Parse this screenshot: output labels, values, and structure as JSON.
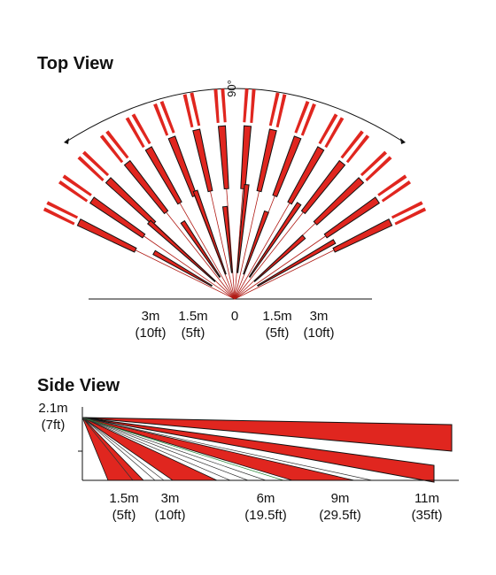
{
  "top_view": {
    "title": "Top View",
    "angle_label": "90°",
    "labels": [
      {
        "main": "3m",
        "sub": "(10ft)"
      },
      {
        "main": "1.5m",
        "sub": "(5ft)"
      },
      {
        "main": "0"
      },
      {
        "main": "1.5m",
        "sub": "(5ft)"
      },
      {
        "main": "3m",
        "sub": "(10ft)"
      }
    ]
  },
  "side_view": {
    "title": "Side View",
    "height_label": {
      "main": "2.1m",
      "sub": "(7ft)"
    },
    "labels": [
      {
        "main": "1.5m",
        "sub": "(5ft)"
      },
      {
        "main": "3m",
        "sub": "(10ft)"
      },
      {
        "main": "6m",
        "sub": "(19.5ft)"
      },
      {
        "main": "9m",
        "sub": "(29.5ft)"
      },
      {
        "main": "11m",
        "sub": "(35ft)"
      }
    ]
  }
}
